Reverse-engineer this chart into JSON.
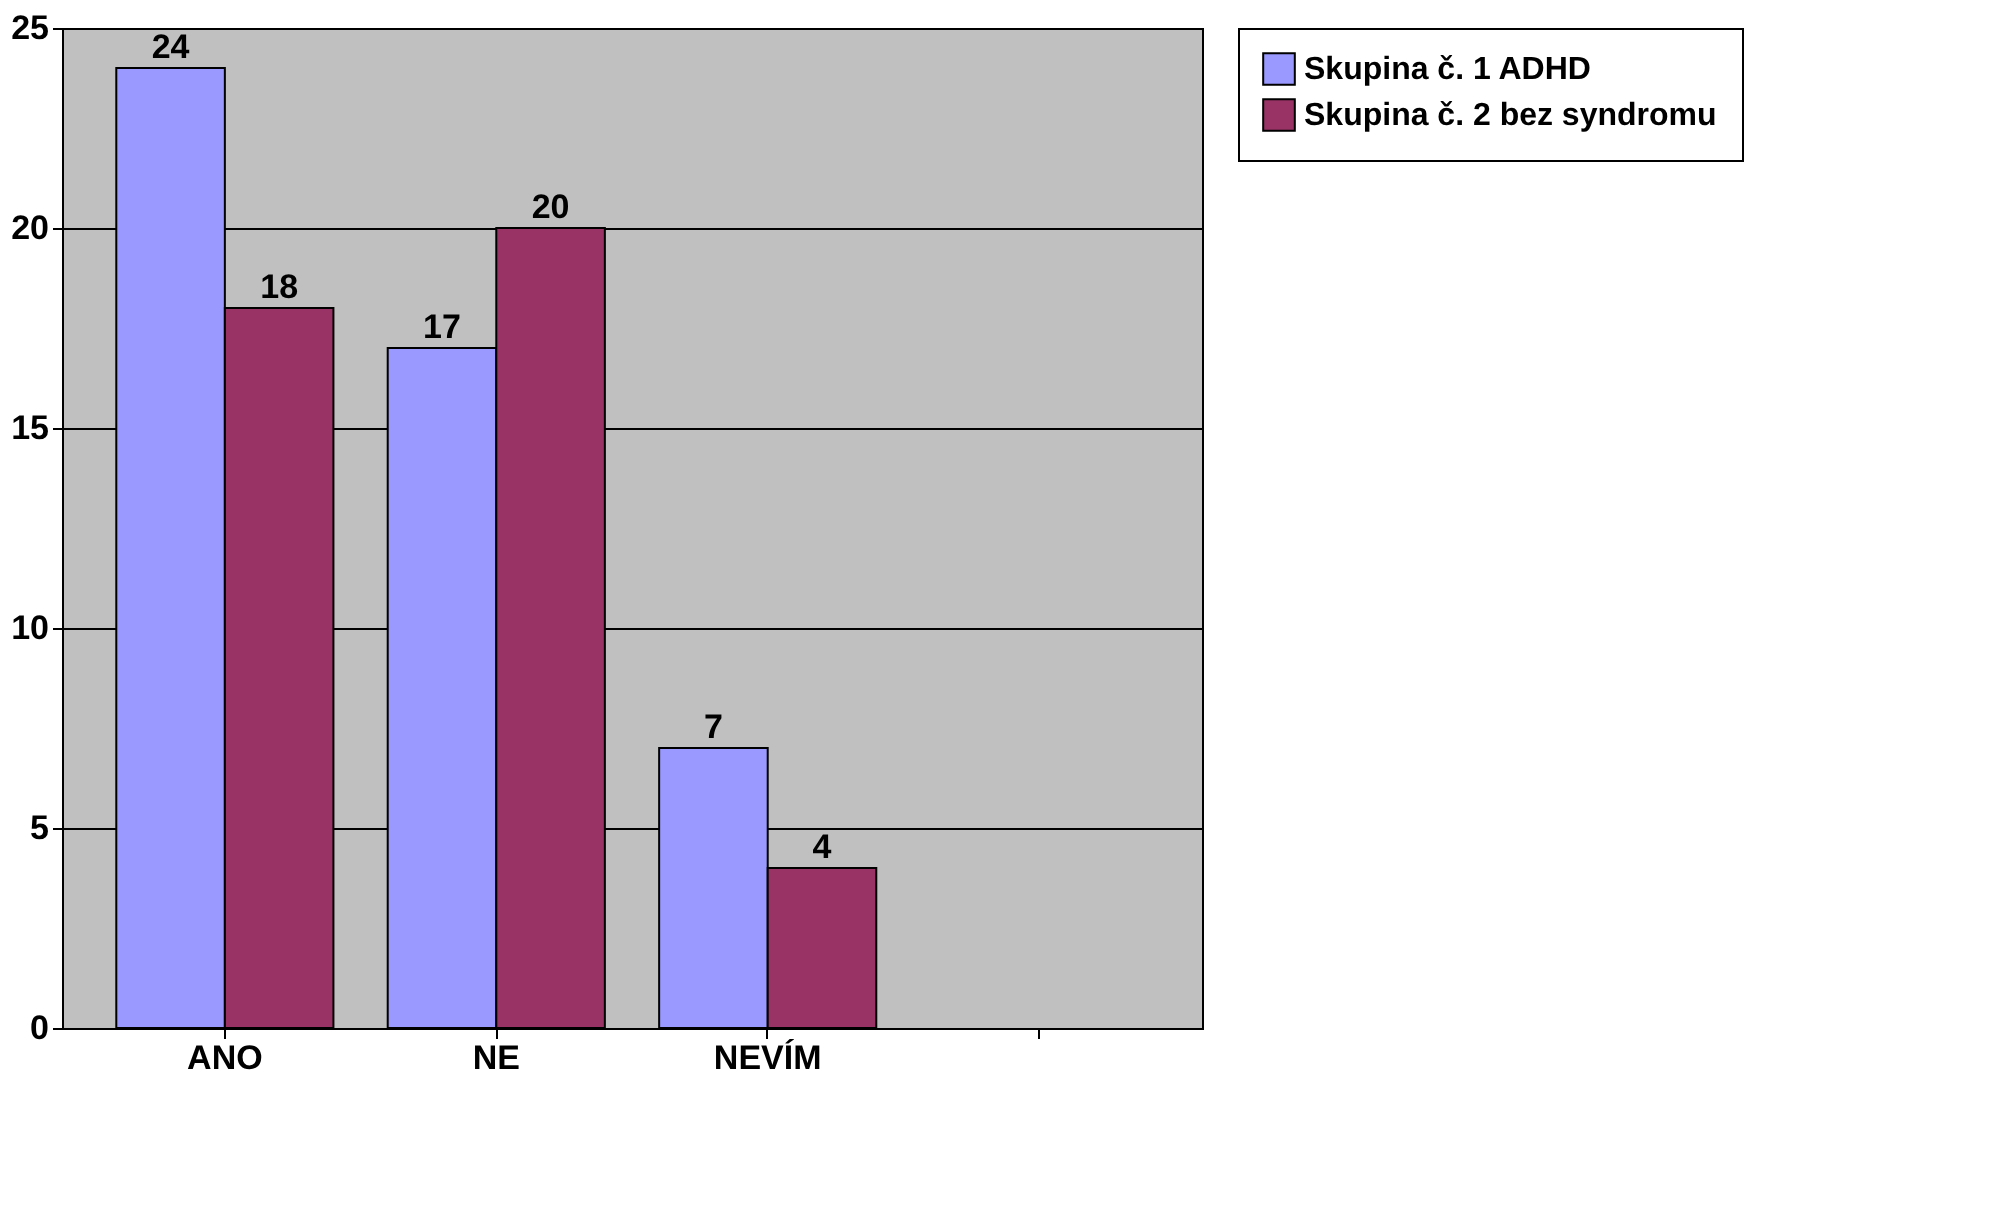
{
  "chart_data": {
    "type": "bar",
    "categories": [
      "ANO",
      "NE",
      "NEVÍM",
      null
    ],
    "series": [
      {
        "name": "Skupina č. 1 ADHD",
        "color": "#9999ff",
        "values": [
          24,
          17,
          7,
          null
        ]
      },
      {
        "name": "Skupina č. 2 bez syndromu",
        "color": "#993366",
        "values": [
          18,
          20,
          4,
          null
        ]
      }
    ],
    "ylim": [
      0,
      25
    ],
    "yticks": [
      0,
      5,
      10,
      15,
      20,
      25
    ],
    "grid": "y",
    "legend": "right",
    "data_labels": true
  }
}
